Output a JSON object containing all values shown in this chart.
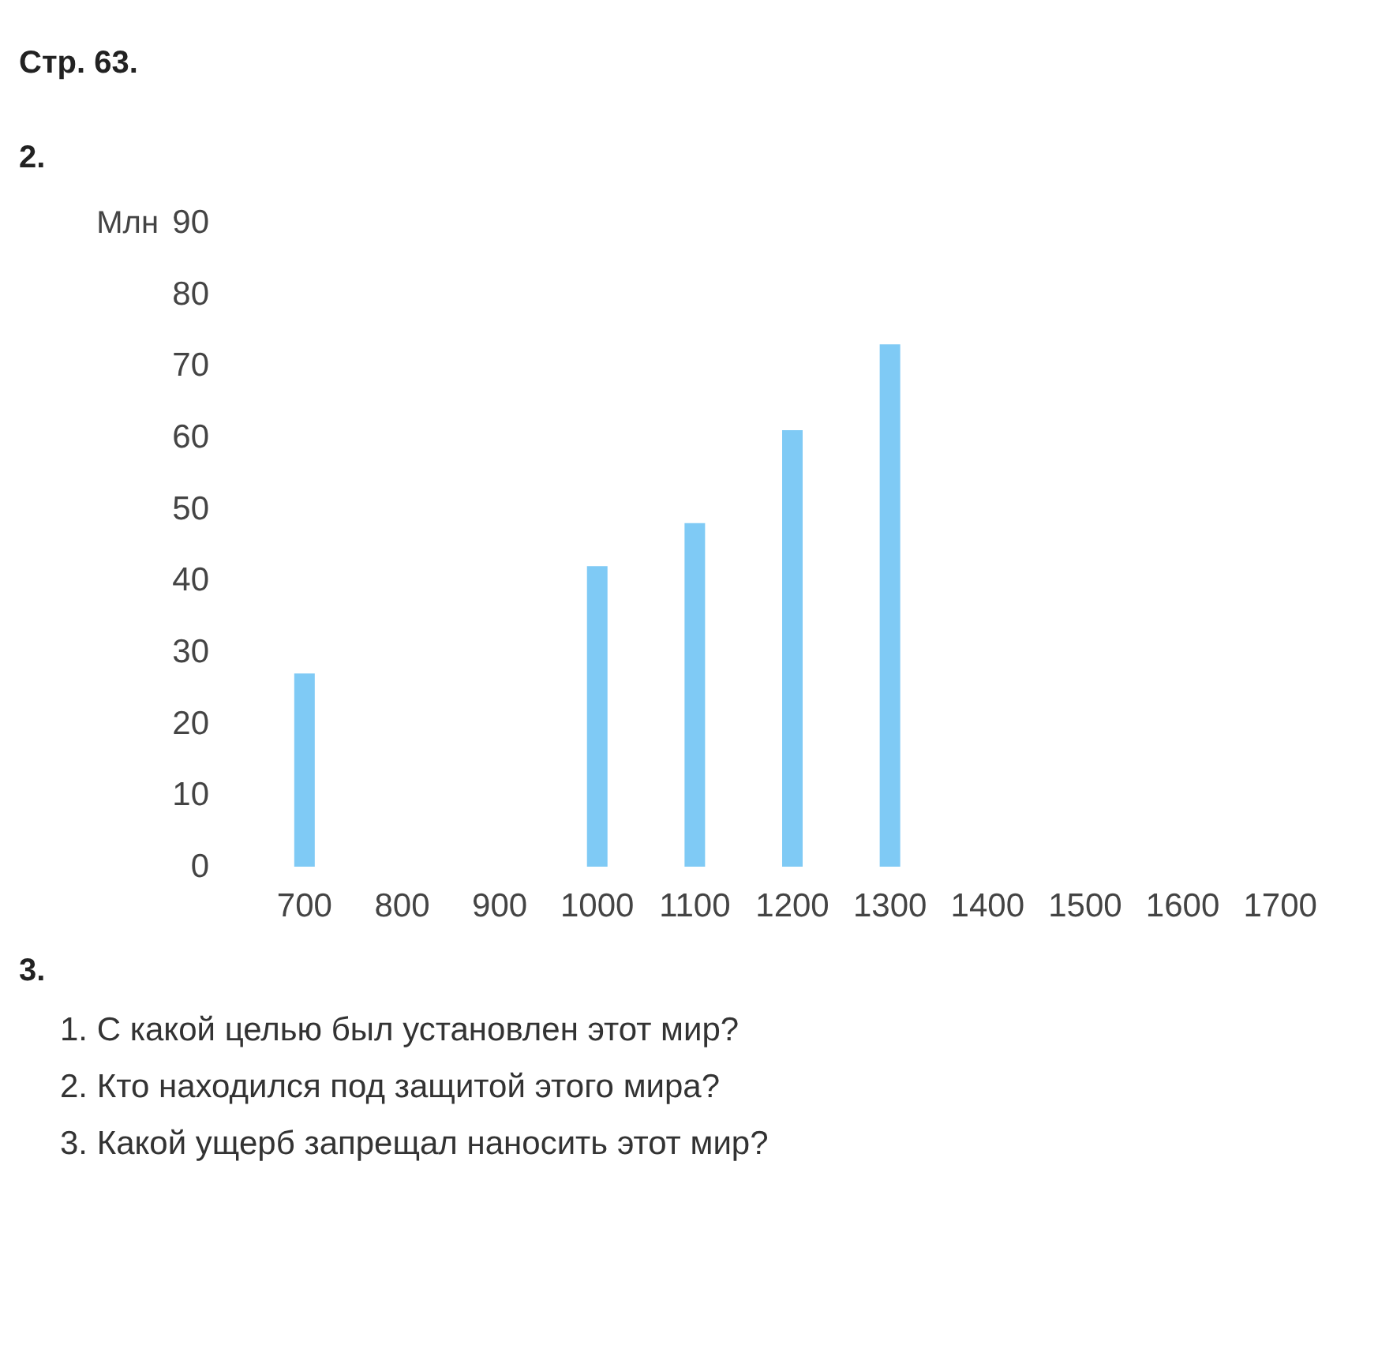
{
  "chart_data": {
    "type": "bar",
    "title": "Стр. 63.",
    "subtitle": "2.",
    "ylabel": "Млн",
    "categories": [
      "700",
      "800",
      "900",
      "1000",
      "1100",
      "1200",
      "1300",
      "1400",
      "1500",
      "1600",
      "1700"
    ],
    "values": [
      27,
      null,
      null,
      42,
      48,
      61,
      73,
      null,
      null,
      null,
      null
    ],
    "color": "#7fcaf5",
    "ylim": [
      0,
      90
    ],
    "yticks": [
      0,
      10,
      20,
      30,
      40,
      50,
      60,
      70,
      80,
      90
    ],
    "annotations": [
      "3.",
      "1. С какой целью был установлен этот мир?",
      "2. Кто находился под защитой этого мира?",
      "3. Какой ущерб запрещал наносить этот мир?"
    ]
  }
}
